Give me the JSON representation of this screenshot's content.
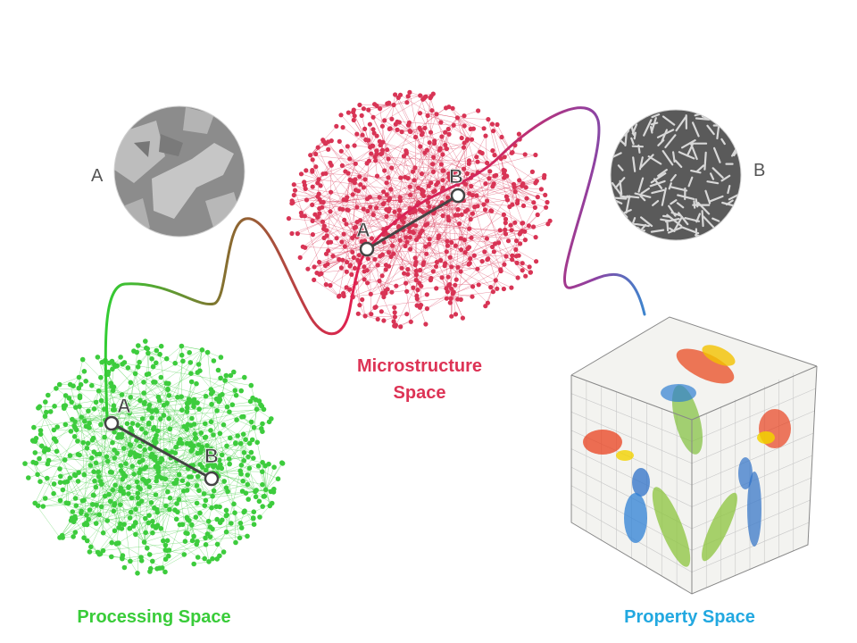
{
  "labels": {
    "processing": "Processing Space",
    "microstructure_line1": "Microstructure",
    "microstructure_line2": "Space",
    "property": "Property Space",
    "micrograph_a": "A",
    "micrograph_b": "B"
  },
  "points": {
    "processing_a": "A",
    "processing_b": "B",
    "microstructure_a": "A",
    "microstructure_b": "B"
  },
  "colors": {
    "processing": "#39cc39",
    "microstructure": "#dd3355",
    "property": "#22a8e0",
    "path_start": "#33cc33",
    "path_mid": "#8a6a30",
    "path_red": "#e02050",
    "path_purple": "#9040a0",
    "path_end": "#3a88d0"
  },
  "icons": {
    "micrograph_a": "coarse-micrograph-icon",
    "micrograph_b": "fine-micrograph-icon",
    "property_cube": "ashby-property-cube-icon"
  }
}
